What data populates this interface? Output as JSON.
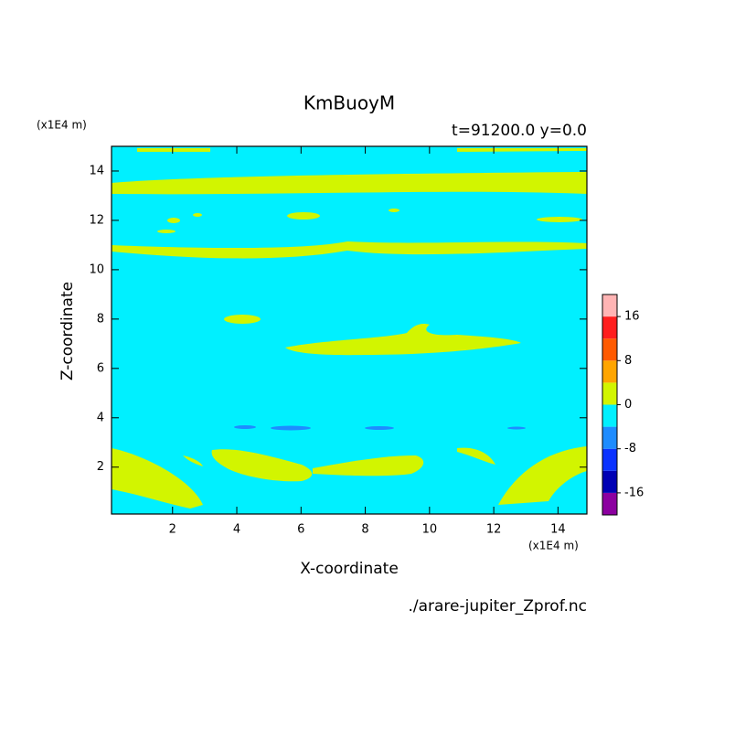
{
  "chart_data": {
    "type": "contour",
    "title": "KmBuoyM",
    "subtitle": "t=91200.0 y=0.0",
    "x_label": "X-coordinate",
    "y_label": "Z-coordinate",
    "x_unit": "(x1E4 m)",
    "y_unit": "(x1E4 m)",
    "source": "./arare-jupiter_Zprof.nc",
    "xlim": [
      0.1,
      14.9
    ],
    "ylim": [
      0.1,
      15
    ],
    "xticks": [
      2,
      4,
      6,
      8,
      10,
      12,
      14
    ],
    "yticks": [
      2,
      4,
      6,
      8,
      10,
      12,
      14
    ],
    "colorbar": {
      "levels": [
        -20,
        -16,
        -12,
        -8,
        -4,
        0,
        4,
        8,
        12,
        16,
        20
      ],
      "colors": [
        "#8c00a0",
        "#0000b4",
        "#0a32ff",
        "#1e8cff",
        "#00f0ff",
        "#d2f500",
        "#ffa500",
        "#ff5a00",
        "#ff1e1e",
        "#ffb4b4"
      ],
      "ticks": [
        -16,
        -8,
        0,
        8,
        16
      ]
    }
  }
}
